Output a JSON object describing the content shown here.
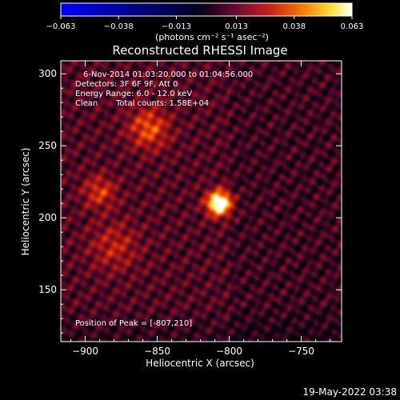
{
  "chart_data": {
    "type": "heatmap",
    "title": "Reconstructed RHESSI Image",
    "xlabel": "Heliocentric X (arcsec)",
    "ylabel": "Heliocentric Y (arcsec)",
    "xlim": [
      -917,
      -722
    ],
    "ylim": [
      114,
      309
    ],
    "xticks": [
      -900,
      -850,
      -800,
      -750
    ],
    "yticks": [
      150,
      200,
      250,
      300
    ],
    "grid": false,
    "colorbar": {
      "ticks": [
        -0.063,
        -0.038,
        -0.013,
        0.013,
        0.038,
        0.063
      ],
      "unit_label": "(photons cm⁻² s⁻¹ asec⁻²)",
      "vmin": -0.063,
      "vmax": 0.063
    },
    "annotations": {
      "time_range": "6-Nov-2014 01:03:20.000 to 01:04:56.000",
      "detectors": "Detectors: 3F 6F 9F, Att 0",
      "energy_range": "Energy Range: 6.0 - 12.0 keV",
      "method": "Clean",
      "total_counts": "Total counts: 1.58E+04",
      "peak": "Position of Peak = [-807,210]"
    },
    "sources": [
      {
        "x": -807,
        "y": 210,
        "peak": 0.063,
        "sigma": 6
      },
      {
        "x": -856,
        "y": 262,
        "peak": 0.026,
        "sigma": 10
      },
      {
        "x": -890,
        "y": 218,
        "peak": 0.021,
        "sigma": 8
      },
      {
        "x": -880,
        "y": 180,
        "peak": 0.016,
        "sigma": 12
      }
    ],
    "background": 0.011
  },
  "footer": {
    "timestamp": "19-May-2022 03:38"
  }
}
